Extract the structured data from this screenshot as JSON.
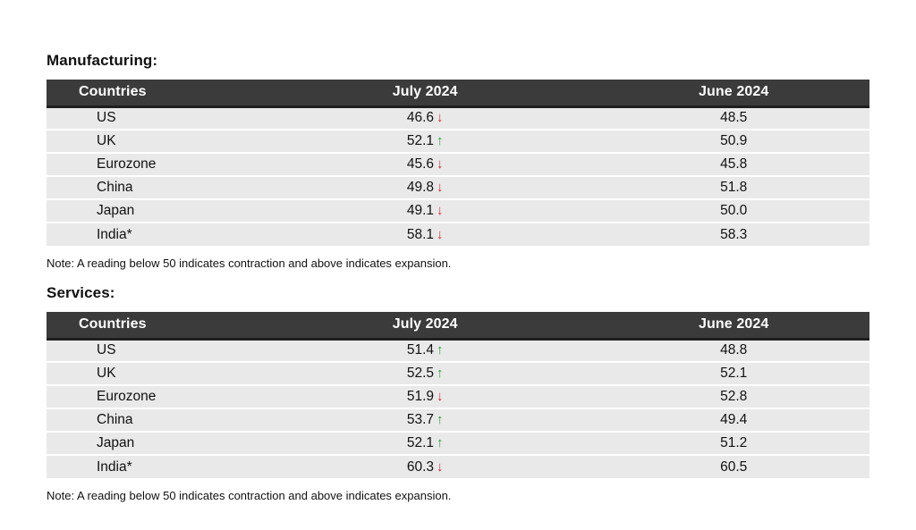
{
  "colors": {
    "header_bg": "#3b3b3b",
    "header_border": "#1f1f1f",
    "header_text": "#ffffff",
    "row_bg": "#e9e9e9",
    "text": "#111111",
    "up": "#2f9e33",
    "down": "#d32f2f"
  },
  "icons": {
    "up_arrow": "↑",
    "down_arrow": "↓"
  },
  "chart_data": [
    {
      "type": "table",
      "title": "Manufacturing:",
      "columns": [
        "Countries",
        "July 2024",
        "June 2024"
      ],
      "rows": [
        {
          "country": "US",
          "july": "46.6",
          "trend": "down",
          "june": "48.5"
        },
        {
          "country": "UK",
          "july": "52.1",
          "trend": "up",
          "june": "50.9"
        },
        {
          "country": "Eurozone",
          "july": "45.6",
          "trend": "down",
          "june": "45.8"
        },
        {
          "country": "China",
          "july": "49.8",
          "trend": "down",
          "june": "51.8"
        },
        {
          "country": "Japan",
          "july": "49.1",
          "trend": "down",
          "june": "50.0"
        },
        {
          "country": "India*",
          "july": "58.1",
          "trend": "down",
          "june": "58.3"
        }
      ],
      "note": "Note: A reading below 50 indicates contraction and above indicates expansion."
    },
    {
      "type": "table",
      "title": "Services:",
      "columns": [
        "Countries",
        "July 2024",
        "June 2024"
      ],
      "rows": [
        {
          "country": "US",
          "july": "51.4",
          "trend": "up",
          "june": "48.8"
        },
        {
          "country": "UK",
          "july": "52.5",
          "trend": "up",
          "june": "52.1"
        },
        {
          "country": "Eurozone",
          "july": "51.9",
          "trend": "down",
          "june": "52.8"
        },
        {
          "country": "China",
          "july": "53.7",
          "trend": "up",
          "june": "49.4"
        },
        {
          "country": "Japan",
          "july": "52.1",
          "trend": "up",
          "june": "51.2"
        },
        {
          "country": "India*",
          "july": "60.3",
          "trend": "down",
          "june": "60.5"
        }
      ],
      "note": "Note: A reading below 50 indicates contraction and above indicates expansion."
    }
  ]
}
